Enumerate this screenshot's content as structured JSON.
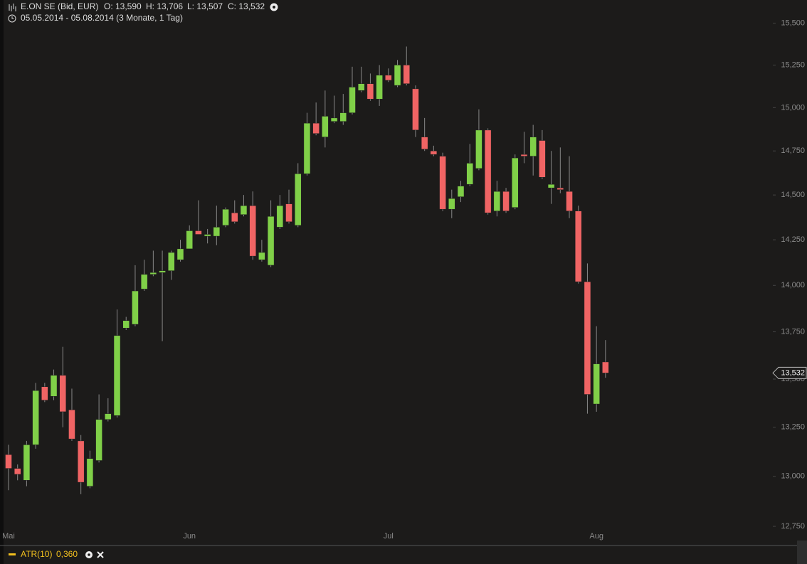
{
  "chart_data": {
    "type": "candlestick",
    "header": {
      "instrument": "E.ON SE (Bid, EUR)",
      "quote": [
        "O: 13,590",
        "H: 13,706",
        "L: 13,507",
        "C: 13,532"
      ],
      "range": "05.05.2014 - 05.08.2014 (3 Monate, 1 Tag)"
    },
    "categories": [
      "Mai",
      null,
      null,
      null,
      null,
      null,
      null,
      null,
      null,
      null,
      null,
      null,
      null,
      null,
      null,
      null,
      null,
      null,
      null,
      null,
      "Jun",
      null,
      null,
      null,
      null,
      null,
      null,
      null,
      null,
      null,
      null,
      null,
      null,
      null,
      null,
      null,
      null,
      null,
      null,
      null,
      null,
      null,
      "Jul",
      null,
      null,
      null,
      null,
      null,
      null,
      null,
      null,
      null,
      null,
      null,
      null,
      null,
      null,
      null,
      null,
      null,
      null,
      null,
      null,
      null,
      null,
      "Aug",
      null
    ],
    "open": [
      13.11,
      13.04,
      12.98,
      13.16,
      13.46,
      13.41,
      13.52,
      13.34,
      13.18,
      12.95,
      13.08,
      13.29,
      13.31,
      13.77,
      13.79,
      13.98,
      14.06,
      14.07,
      14.08,
      14.14,
      14.2,
      14.3,
      14.27,
      14.27,
      14.33,
      14.4,
      14.39,
      14.44,
      14.14,
      14.11,
      14.32,
      14.45,
      14.33,
      14.62,
      14.91,
      14.83,
      14.92,
      14.92,
      14.97,
      15.1,
      15.14,
      15.05,
      15.19,
      15.13,
      15.25,
      15.11,
      14.83,
      14.75,
      14.72,
      14.42,
      14.49,
      14.56,
      14.65,
      14.87,
      14.41,
      14.52,
      14.43,
      14.73,
      14.72,
      14.81,
      14.54,
      14.54,
      14.52,
      14.41,
      14.02,
      13.37,
      13.59
    ],
    "high": [
      13.16,
      13.06,
      13.18,
      13.48,
      13.48,
      13.55,
      13.67,
      13.45,
      13.21,
      13.13,
      13.42,
      13.4,
      13.87,
      13.83,
      14.11,
      14.14,
      14.19,
      14.19,
      14.19,
      14.25,
      14.33,
      14.47,
      14.31,
      14.44,
      14.43,
      14.47,
      14.5,
      14.52,
      14.25,
      14.47,
      14.5,
      14.53,
      14.68,
      14.97,
      15.03,
      15.1,
      15.07,
      15.08,
      15.24,
      15.24,
      15.2,
      15.25,
      15.23,
      15.28,
      15.36,
      15.13,
      14.94,
      14.78,
      14.74,
      14.53,
      14.58,
      14.79,
      14.99,
      14.88,
      14.58,
      14.54,
      14.73,
      14.86,
      14.9,
      14.87,
      14.75,
      14.77,
      14.72,
      14.44,
      14.12,
      13.78,
      13.706
    ],
    "low": [
      12.93,
      12.98,
      12.95,
      13.14,
      13.38,
      13.39,
      13.25,
      13.18,
      12.91,
      12.94,
      13.07,
      13.28,
      13.3,
      13.76,
      13.78,
      13.97,
      14.05,
      13.7,
      14.03,
      14.13,
      14.2,
      14.28,
      14.23,
      14.22,
      14.32,
      14.34,
      14.38,
      14.14,
      14.13,
      14.1,
      14.31,
      14.34,
      14.32,
      14.61,
      14.84,
      14.77,
      14.91,
      14.9,
      14.96,
      15.09,
      15.04,
      15.01,
      15.15,
      15.12,
      15.13,
      14.83,
      14.75,
      14.72,
      14.41,
      14.37,
      14.46,
      14.55,
      14.64,
      14.39,
      14.38,
      14.4,
      14.42,
      14.68,
      14.61,
      14.59,
      14.45,
      14.51,
      14.37,
      14.01,
      13.32,
      13.33,
      13.507
    ],
    "close": [
      13.04,
      13.01,
      13.16,
      13.44,
      13.39,
      13.52,
      13.33,
      13.19,
      12.97,
      13.09,
      13.29,
      13.32,
      13.73,
      13.81,
      13.97,
      14.06,
      14.07,
      14.08,
      14.18,
      14.2,
      14.3,
      14.28,
      14.28,
      14.32,
      14.42,
      14.35,
      14.44,
      14.16,
      14.18,
      14.38,
      14.44,
      14.35,
      14.62,
      14.91,
      14.85,
      14.95,
      14.94,
      14.97,
      15.12,
      15.14,
      15.05,
      15.19,
      15.16,
      15.25,
      15.14,
      14.87,
      14.76,
      14.73,
      14.42,
      14.48,
      14.55,
      14.68,
      14.87,
      14.4,
      14.52,
      14.41,
      14.71,
      14.72,
      14.83,
      14.6,
      14.56,
      14.53,
      14.41,
      14.02,
      13.42,
      13.58,
      13.532
    ],
    "up_color": "#80d048",
    "down_color": "#f06464",
    "log_scale": true,
    "ylim": [
      12.68,
      15.64
    ],
    "yticks": [
      {
        "value": 12.75,
        "label": "12,750"
      },
      {
        "value": 13,
        "label": "13,000"
      },
      {
        "value": 13.25,
        "label": "13,250"
      },
      {
        "value": 13.5,
        "label": "13,500"
      },
      {
        "value": 13.75,
        "label": "13,750"
      },
      {
        "value": 14,
        "label": "14,000"
      },
      {
        "value": 14.25,
        "label": "14,250"
      },
      {
        "value": 14.5,
        "label": "14,500"
      },
      {
        "value": 14.75,
        "label": "14,750"
      },
      {
        "value": 15,
        "label": "15,000"
      },
      {
        "value": 15.25,
        "label": "15,250"
      },
      {
        "value": 15.5,
        "label": "15,500"
      }
    ],
    "last_price": {
      "value": 13.532,
      "label": "13,532"
    },
    "indicator": {
      "name": "ATR(10)",
      "text": "0,360",
      "color": "#f2c01e"
    }
  }
}
